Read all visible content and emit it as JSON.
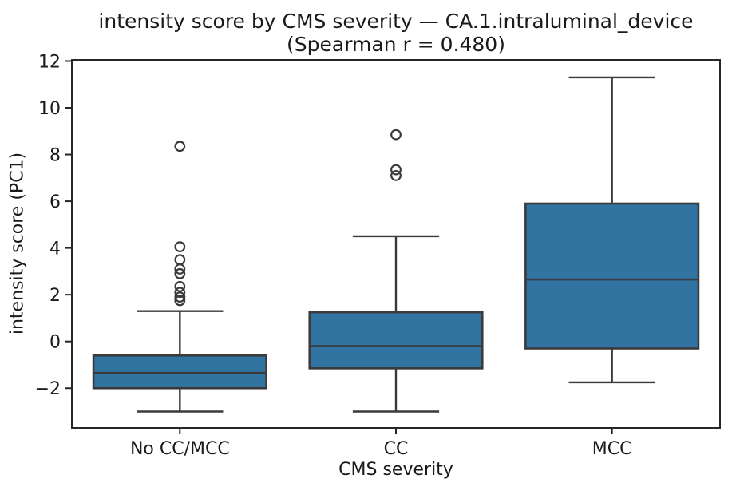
{
  "chart_data": {
    "type": "boxplot",
    "title": "intensity score by CMS severity — CA.1.intraluminal_device",
    "subtitle": "(Spearman r = 0.480)",
    "xlabel": "CMS severity",
    "ylabel": "intensity score (PC1)",
    "categories": [
      "No CC/MCC",
      "CC",
      "MCC"
    ],
    "ylim": [
      -3.7,
      12.05
    ],
    "yticks": [
      -2,
      0,
      2,
      4,
      6,
      8,
      10,
      12
    ],
    "grid": false,
    "legend": false,
    "colors": {
      "box_fill": "#3274a1",
      "box_edge": "#3a3a3a",
      "axis": "#262626",
      "text": "#1a1a1a"
    },
    "series": [
      {
        "category": "No CC/MCC",
        "whisker_low": -3.0,
        "q1": -2.0,
        "median": -1.35,
        "q3": -0.6,
        "whisker_high": 1.3,
        "outliers": [
          1.75,
          1.9,
          2.1,
          2.35,
          2.9,
          3.1,
          3.5,
          4.05,
          8.35
        ]
      },
      {
        "category": "CC",
        "whisker_low": -3.0,
        "q1": -1.15,
        "median": -0.2,
        "q3": 1.25,
        "whisker_high": 4.5,
        "outliers": [
          7.1,
          7.35,
          8.85
        ]
      },
      {
        "category": "MCC",
        "whisker_low": -1.75,
        "q1": -0.3,
        "median": 2.65,
        "q3": 5.9,
        "whisker_high": 11.3,
        "outliers": []
      }
    ]
  }
}
